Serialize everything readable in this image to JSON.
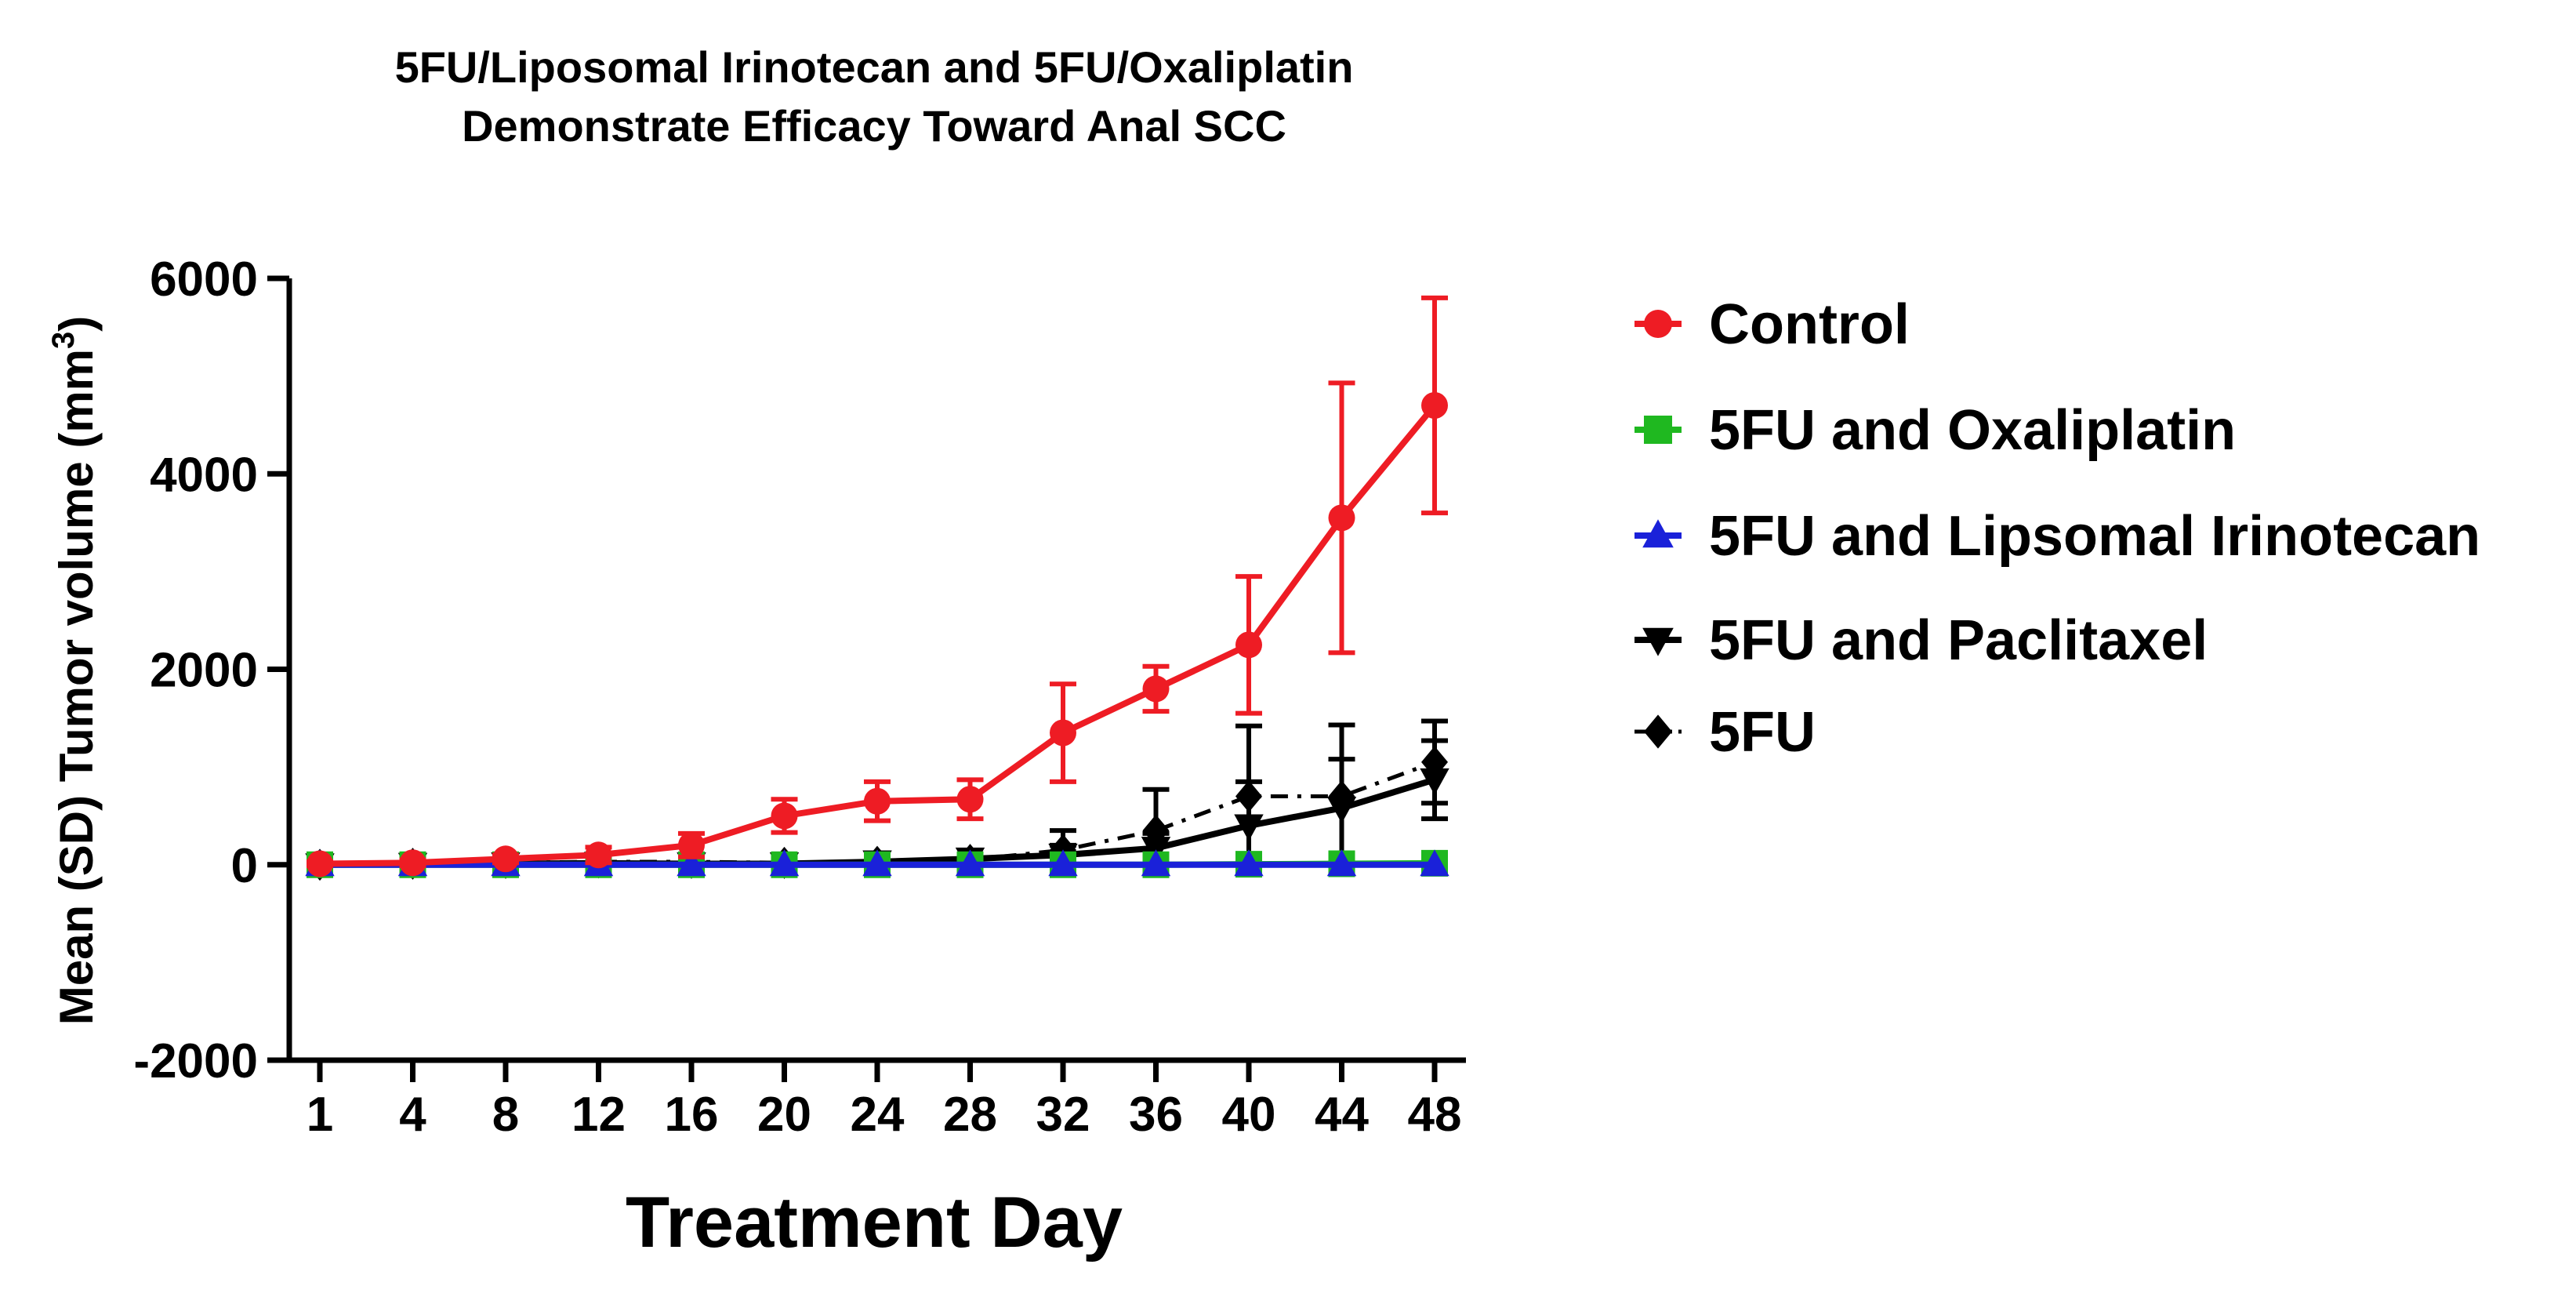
{
  "chart_data": {
    "type": "line",
    "title_line1": "5FU/Liposomal Irinotecan and  5FU/Oxaliplatin",
    "title_line2": "Demonstrate  Efficacy Toward  Anal SCC",
    "xlabel": "Treatment  Day",
    "ylabel": "Mean (SD) Tumor volume (mm",
    "ylabel_sup": "3",
    "ylabel_close": ")",
    "ylim": [
      -2000,
      6000
    ],
    "yticks": [
      -2000,
      0,
      2000,
      4000,
      6000
    ],
    "ytick_labels": [
      "-2000",
      "0",
      "2000",
      "4000",
      "6000"
    ],
    "x": [
      1,
      4,
      8,
      12,
      16,
      20,
      24,
      28,
      32,
      36,
      40,
      44,
      48
    ],
    "xtick_labels": [
      "1",
      "4",
      "8",
      "12",
      "16",
      "20",
      "24",
      "28",
      "32",
      "36",
      "40",
      "44",
      "48"
    ],
    "legend_position": "right",
    "grid": false,
    "series": [
      {
        "name": "Control",
        "color": "#ee1c24",
        "marker": "circle",
        "line_style": "solid",
        "values": [
          10,
          20,
          60,
          100,
          200,
          500,
          650,
          670,
          1350,
          1800,
          2250,
          3550,
          4700
        ],
        "errors": [
          20,
          30,
          40,
          80,
          120,
          170,
          200,
          200,
          500,
          230,
          700,
          1380,
          1100
        ]
      },
      {
        "name": "5FU and Oxaliplatin",
        "color": "#1fb820",
        "marker": "square",
        "line_style": "solid",
        "values": [
          0,
          0,
          0,
          0,
          0,
          0,
          0,
          0,
          0,
          0,
          5,
          10,
          15
        ],
        "errors": [
          0,
          0,
          0,
          0,
          0,
          0,
          0,
          0,
          0,
          0,
          5,
          10,
          10
        ]
      },
      {
        "name": "5FU and Lipsomal Irinotecan",
        "color": "#1a21d9",
        "marker": "triangle-up",
        "line_style": "solid",
        "values": [
          0,
          0,
          0,
          0,
          0,
          0,
          0,
          0,
          0,
          0,
          0,
          0,
          0
        ],
        "errors": [
          0,
          0,
          0,
          0,
          0,
          0,
          0,
          0,
          0,
          0,
          0,
          0,
          0
        ]
      },
      {
        "name": "5FU and Paclitaxel",
        "color": "#000000",
        "marker": "triangle-down",
        "line_style": "solid",
        "values": [
          0,
          5,
          10,
          15,
          10,
          10,
          30,
          60,
          100,
          170,
          400,
          580,
          870
        ],
        "errors": [
          10,
          15,
          20,
          30,
          20,
          20,
          40,
          50,
          100,
          150,
          450,
          500,
          400
        ]
      },
      {
        "name": "5FU",
        "color": "#000000",
        "marker": "diamond",
        "line_style": "dashdot",
        "values": [
          0,
          10,
          20,
          30,
          30,
          20,
          30,
          50,
          150,
          350,
          700,
          700,
          1050
        ],
        "errors": [
          10,
          15,
          20,
          30,
          20,
          20,
          30,
          50,
          200,
          420,
          720,
          730,
          420
        ]
      }
    ]
  }
}
